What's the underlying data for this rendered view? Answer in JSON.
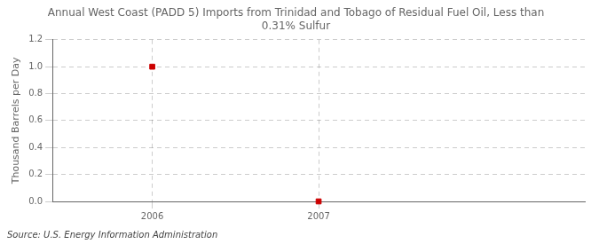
{
  "chart_data": {
    "type": "scatter",
    "title": "Annual West Coast (PADD 5) Imports from Trinidad and Tobago of Residual Fuel Oil, Less than\n0.31% Sulfur",
    "ylabel": "Thousand Barrels per Day",
    "source": "Source: U.S. Energy Information Administration",
    "x": [
      2006,
      2007
    ],
    "values": [
      1.0,
      0.0
    ],
    "color": "#cc0000",
    "marker": "square",
    "xlim": [
      2005.4,
      2008.6
    ],
    "xticks": [
      2006,
      2007
    ],
    "ylim": [
      0.0,
      1.2
    ],
    "yticks": [
      {
        "value": 0.0,
        "label": "0.0"
      },
      0.2,
      0.4,
      0.6,
      0.8,
      {
        "value": 1.0,
        "label": "1.0"
      },
      1.2
    ],
    "grid": true
  }
}
